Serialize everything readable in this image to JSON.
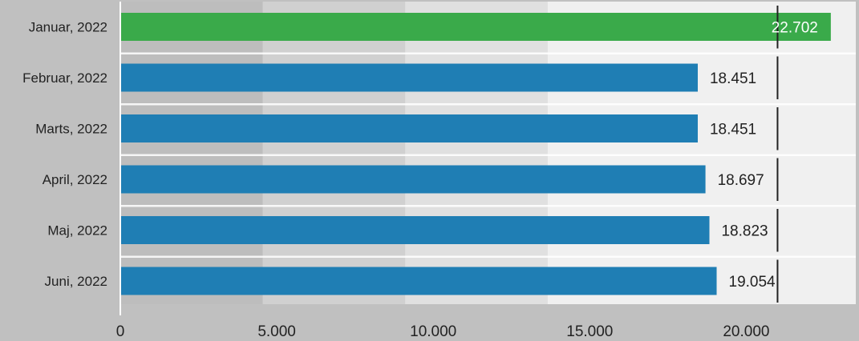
{
  "chart_data": {
    "type": "bar",
    "orientation": "horizontal",
    "categories": [
      "Januar, 2022",
      "Februar, 2022",
      "Marts, 2022",
      "April, 2022",
      "Maj, 2022",
      "Juni, 2022"
    ],
    "values": [
      22702,
      18451,
      18451,
      18697,
      18823,
      19054
    ],
    "value_labels": [
      "22.702",
      "18.451",
      "18.451",
      "18.697",
      "18.823",
      "19.054"
    ],
    "x_ticks": [
      0,
      5000,
      10000,
      15000,
      20000
    ],
    "x_tick_labels": [
      "0",
      "5.000",
      "10.000",
      "15.000",
      "20.000"
    ],
    "xlim": [
      0,
      23500
    ],
    "target_value": 21000,
    "background_bands": [
      {
        "from": 0,
        "to": 4550,
        "color": "#bdbdbd"
      },
      {
        "from": 4550,
        "to": 9100,
        "color": "#d0d0d0"
      },
      {
        "from": 9100,
        "to": 13650,
        "color": "#e0e0e0"
      },
      {
        "from": 13650,
        "to": 23500,
        "color": "#f0f0f0"
      }
    ],
    "highlight_category": "Januar, 2022",
    "colors": {
      "highlight_bar": "#3aaa4a",
      "bar": "#1f7eb4",
      "target_line": "#222222",
      "highlight_label": "#ffffff",
      "label": "#222222",
      "background": "#c0c0c0"
    },
    "grid": false,
    "legend": null
  }
}
